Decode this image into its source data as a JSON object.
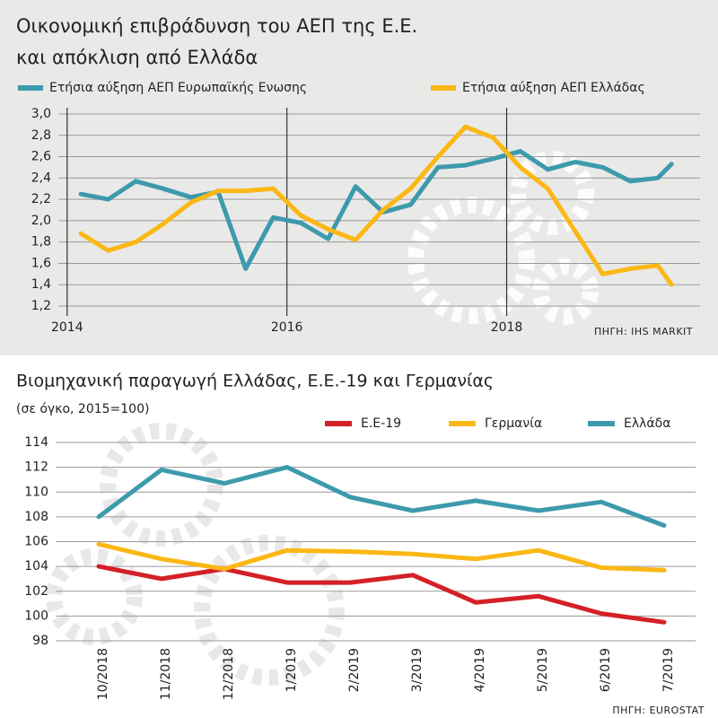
{
  "chart_data": [
    {
      "type": "line",
      "title": [
        "Οικονομική επιβράδυνση του ΑΕΠ της Ε.Ε.",
        "και απόκλιση από Ελλάδα"
      ],
      "source": "ΠΗΓΗ: IHS MARKIT",
      "x": [
        2014.125,
        2014.375,
        2014.625,
        2014.875,
        2015.125,
        2015.375,
        2015.625,
        2015.875,
        2016.125,
        2016.375,
        2016.625,
        2016.875,
        2017.125,
        2017.375,
        2017.625,
        2017.875,
        2018.125,
        2018.375,
        2018.625,
        2018.875,
        2019.125,
        2019.375,
        2019.5
      ],
      "series": [
        {
          "name": "Ετήσια αύξηση ΑΕΠ Ευρωπαϊκής Ενωσης",
          "color": "#3d9aad",
          "values": [
            2.25,
            2.2,
            2.37,
            2.3,
            2.22,
            2.27,
            1.55,
            2.03,
            1.98,
            1.83,
            2.32,
            2.08,
            2.15,
            2.5,
            2.52,
            2.58,
            2.65,
            2.48,
            2.55,
            2.5,
            2.37,
            2.4,
            2.53
          ]
        },
        {
          "name": "Ετήσια αύξηση ΑΕΠ Ελλάδας",
          "color": "#fbb714",
          "values": [
            1.88,
            1.72,
            1.8,
            1.97,
            2.17,
            2.28,
            2.28,
            2.3,
            2.05,
            1.92,
            1.82,
            2.1,
            2.3,
            2.6,
            2.88,
            2.78,
            2.5,
            2.3,
            1.9,
            1.5,
            1.55,
            1.58,
            1.4
          ]
        }
      ],
      "xlim": [
        2013.92,
        2019.76
      ],
      "xticks": [
        2014,
        2016,
        2018
      ],
      "ylim": [
        1.2,
        3.0
      ],
      "yticks": [
        {
          "value": 1.2,
          "label": "1,2"
        },
        {
          "value": 1.4,
          "label": "1,4"
        },
        {
          "value": 1.6,
          "label": "1,6"
        },
        {
          "value": 1.8,
          "label": "1,8"
        },
        {
          "value": 2.0,
          "label": "2,0"
        },
        {
          "value": 2.2,
          "label": "2,2"
        },
        {
          "value": 2.4,
          "label": "2,4"
        },
        {
          "value": 2.6,
          "label": "2,6"
        },
        {
          "value": 2.8,
          "label": "2,8"
        },
        {
          "value": 3.0,
          "label": "3,0"
        }
      ],
      "grid": true
    },
    {
      "type": "line",
      "title": [
        "Βιομηχανική παραγωγή Ελλάδας, Ε.Ε.-19 και Γερμανίας"
      ],
      "subtitle": "(σε όγκο, 2015=100)",
      "source": "ΠΗΓΗ: EUROSTAT",
      "categories": [
        "10/2018",
        "11/2018",
        "12/2018",
        "1/2019",
        "2/2019",
        "3/2019",
        "4/2019",
        "5/2019",
        "6/2019",
        "7/2019"
      ],
      "series": [
        {
          "name": "Ε.Ε-19",
          "color": "#d42027",
          "values": [
            104,
            103,
            103.8,
            102.7,
            102.7,
            103.3,
            101.1,
            101.6,
            100.2,
            99.5
          ]
        },
        {
          "name": "Γερμανία",
          "color": "#fbb714",
          "values": [
            105.8,
            104.6,
            103.8,
            105.3,
            105.2,
            105.0,
            104.6,
            105.3,
            103.9,
            103.7
          ]
        },
        {
          "name": "Ελλάδα",
          "color": "#3d9aad",
          "values": [
            108,
            111.8,
            110.7,
            112,
            109.6,
            108.5,
            109.3,
            108.5,
            109.2,
            107.3
          ]
        }
      ],
      "ylim": [
        98,
        114
      ],
      "yticks": [
        98,
        100,
        102,
        104,
        106,
        108,
        110,
        112,
        114
      ],
      "grid": true
    }
  ]
}
